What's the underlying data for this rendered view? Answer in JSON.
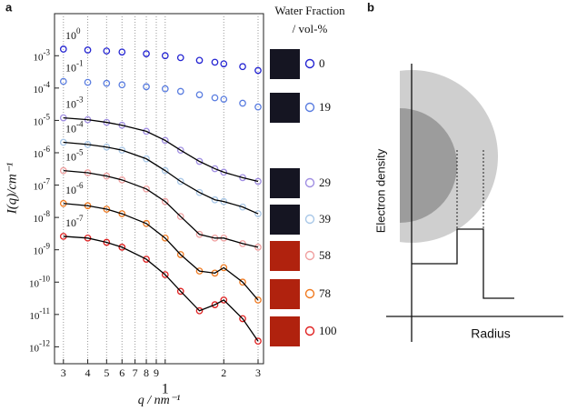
{
  "chart_data": {
    "type": "scatter",
    "panel_label": "a",
    "xlabel": "q / nm⁻¹",
    "ylabel": "I(q)/cm⁻¹",
    "log_x": true,
    "log_y": true,
    "grid": true,
    "legend_title": [
      "Water Fraction",
      "/ vol-%"
    ],
    "xlim": [
      0.27,
      3.2
    ],
    "ylim": [
      3e-13,
      0.02
    ],
    "xticks": [
      {
        "value": 0.3,
        "label": "3"
      },
      {
        "value": 0.4,
        "label": "4"
      },
      {
        "value": 0.5,
        "label": "5"
      },
      {
        "value": 0.6,
        "label": "6"
      },
      {
        "value": 0.7,
        "label": "7"
      },
      {
        "value": 0.8,
        "label": "8"
      },
      {
        "value": 0.9,
        "label": "9"
      },
      1,
      2,
      3
    ],
    "yticks": [
      {
        "value": 0.001,
        "label": "10-3"
      },
      {
        "value": 0.0001,
        "label": "10-4"
      },
      {
        "value": 1e-05,
        "label": "10-5"
      },
      {
        "value": 1e-06,
        "label": "10-6"
      },
      {
        "value": 1e-07,
        "label": "10-7"
      },
      {
        "value": 1e-08,
        "label": "10-8"
      },
      {
        "value": 1e-09,
        "label": "10-9"
      },
      {
        "value": 1e-10,
        "label": "10-10"
      },
      {
        "value": 1e-11,
        "label": "10-11"
      },
      {
        "value": 1e-12,
        "label": "10-12"
      }
    ],
    "x": [
      0.3,
      0.4,
      0.5,
      0.6,
      0.8,
      1.0,
      1.2,
      1.5,
      1.8,
      2.0,
      2.5,
      3.0
    ],
    "series": [
      {
        "name": "0",
        "scale_label": "100",
        "color": "#2424d2",
        "fit": false,
        "values": [
          0.0016,
          0.0015,
          0.0014,
          0.0013,
          0.00115,
          0.001,
          0.00087,
          0.00072,
          0.00063,
          0.00056,
          0.00046,
          0.00035
        ]
      },
      {
        "name": "19",
        "scale_label": "10-1",
        "color": "#5a7de0",
        "fit": false,
        "values": [
          0.00016,
          0.00015,
          0.00014,
          0.000126,
          0.00011,
          9.5e-05,
          7.9e-05,
          6.2e-05,
          5e-05,
          4.5e-05,
          3.4e-05,
          2.6e-05
        ]
      },
      {
        "name": "29",
        "scale_label": "10-3",
        "color": "#a08ee2",
        "fit": true,
        "values": [
          1.2e-05,
          1.05e-05,
          8.7e-06,
          7.1e-06,
          4.6e-06,
          2.4e-06,
          1.2e-06,
          5.4e-07,
          3.2e-07,
          2.5e-07,
          1.7e-07,
          1.3e-07
        ]
      },
      {
        "name": "39",
        "scale_label": "10-4",
        "color": "#a9c8e8",
        "fit": true,
        "values": [
          2.1e-06,
          1.8e-06,
          1.5e-06,
          1.2e-06,
          6.5e-07,
          2.8e-07,
          1.3e-07,
          5.9e-08,
          3.5e-08,
          3.1e-08,
          2.1e-08,
          1.3e-08
        ]
      },
      {
        "name": "58",
        "scale_label": "10-5",
        "color": "#f0a0a0",
        "fit": true,
        "values": [
          2.8e-07,
          2.4e-07,
          1.9e-07,
          1.45e-07,
          7.6e-08,
          3.1e-08,
          1.07e-08,
          3e-09,
          2.3e-09,
          2.3e-09,
          1.55e-09,
          1.2e-09
        ]
      },
      {
        "name": "78",
        "scale_label": "10-6",
        "color": "#f07a20",
        "fit": true,
        "values": [
          2.7e-08,
          2.3e-08,
          1.8e-08,
          1.3e-08,
          6.5e-09,
          2.3e-09,
          7.1e-10,
          2.2e-10,
          1.9e-10,
          2.8e-10,
          1e-10,
          2.8e-11
        ]
      },
      {
        "name": "100",
        "scale_label": "10-7",
        "color": "#e02020",
        "fit": true,
        "values": [
          2.6e-09,
          2.3e-09,
          1.7e-09,
          1.2e-09,
          5.1e-10,
          1.7e-10,
          5.2e-11,
          1.3e-11,
          2e-11,
          2.8e-11,
          7.4e-12,
          1.5e-12
        ]
      }
    ]
  },
  "panel_b": {
    "panel_label": "b",
    "ylabel": "Electron density",
    "xlabel": "Radius"
  }
}
